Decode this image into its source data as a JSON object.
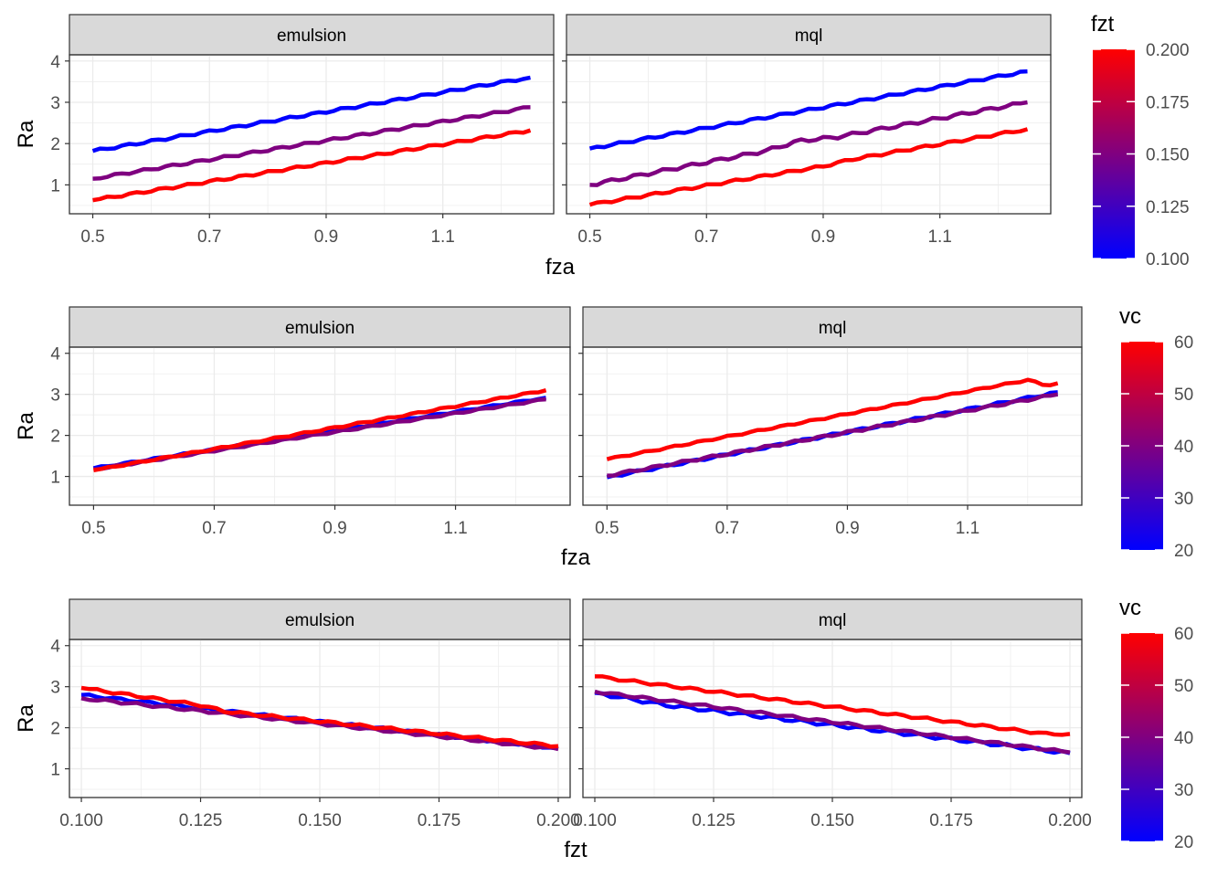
{
  "chart_data": [
    {
      "type": "line",
      "xlabel": "fza",
      "ylabel": "Ra",
      "xlim": [
        0.46,
        1.29
      ],
      "ylim": [
        0.3,
        4.15
      ],
      "x_ticks": [
        "0.5",
        "0.7",
        "0.9",
        "1.1"
      ],
      "y_ticks": [
        "1",
        "2",
        "3",
        "4"
      ],
      "grid": true,
      "legend": {
        "title": "fzt",
        "labels": [
          "0.200",
          "0.175",
          "0.150",
          "0.125",
          "0.100"
        ],
        "range": [
          0.1,
          0.2
        ],
        "low_color": "#0000ff",
        "high_color": "#ff0000",
        "placement": "right"
      },
      "facets": [
        {
          "label": "emulsion",
          "series": [
            {
              "color_value": 0.1,
              "x": [
                0.5,
                1.25
              ],
              "y": [
                1.82,
                3.6
              ],
              "jitter": 0.03
            },
            {
              "color_value": 0.15,
              "x": [
                0.5,
                1.25
              ],
              "y": [
                1.15,
                2.88
              ],
              "jitter": 0.03
            },
            {
              "color_value": 0.2,
              "x": [
                0.5,
                1.25
              ],
              "y": [
                0.63,
                2.32
              ],
              "jitter": 0.03
            }
          ]
        },
        {
          "label": "mql",
          "series": [
            {
              "color_value": 0.1,
              "x": [
                0.5,
                1.25
              ],
              "y": [
                1.88,
                3.75
              ],
              "jitter": 0.03
            },
            {
              "color_value": 0.15,
              "x": [
                0.5,
                0.8,
                0.86,
                0.92,
                1.25
              ],
              "y": [
                1.0,
                1.82,
                2.07,
                2.15,
                3.0
              ],
              "jitter": 0.04
            },
            {
              "color_value": 0.2,
              "x": [
                0.5,
                0.9,
                0.95,
                1.25
              ],
              "y": [
                0.52,
                1.45,
                1.62,
                2.35
              ],
              "jitter": 0.03
            }
          ]
        }
      ]
    },
    {
      "type": "line",
      "xlabel": "fza",
      "ylabel": "Ra",
      "xlim": [
        0.46,
        1.29
      ],
      "ylim": [
        0.3,
        4.15
      ],
      "x_ticks": [
        "0.5",
        "0.7",
        "0.9",
        "1.1"
      ],
      "y_ticks": [
        "1",
        "2",
        "3",
        "4"
      ],
      "grid": true,
      "legend": {
        "title": "vc",
        "labels": [
          "60",
          "50",
          "40",
          "30",
          "20"
        ],
        "range": [
          20,
          60
        ],
        "low_color": "#0000ff",
        "high_color": "#ff0000",
        "placement": "right"
      },
      "facets": [
        {
          "label": "emulsion",
          "series": [
            {
              "color_value": 20,
              "x": [
                0.5,
                1.25
              ],
              "y": [
                1.2,
                2.92
              ],
              "jitter": 0.02
            },
            {
              "color_value": 40,
              "x": [
                0.5,
                1.25
              ],
              "y": [
                1.17,
                2.88
              ],
              "jitter": 0.02
            },
            {
              "color_value": 60,
              "x": [
                0.5,
                1.25
              ],
              "y": [
                1.15,
                3.1
              ],
              "jitter": 0.02
            }
          ]
        },
        {
          "label": "mql",
          "series": [
            {
              "color_value": 20,
              "x": [
                0.5,
                1.25
              ],
              "y": [
                0.98,
                3.05
              ],
              "jitter": 0.03
            },
            {
              "color_value": 40,
              "x": [
                0.5,
                1.25
              ],
              "y": [
                1.02,
                3.0
              ],
              "jitter": 0.03
            },
            {
              "color_value": 60,
              "x": [
                0.5,
                1.2,
                1.23,
                1.25
              ],
              "y": [
                1.42,
                3.35,
                3.22,
                3.27
              ],
              "jitter": 0.02
            }
          ]
        }
      ]
    },
    {
      "type": "line",
      "xlabel": "fzt",
      "ylabel": "Ra",
      "xlim": [
        0.0975,
        0.2025
      ],
      "ylim": [
        0.3,
        4.15
      ],
      "x_ticks": [
        "0.100",
        "0.125",
        "0.150",
        "0.175",
        "0.200"
      ],
      "y_ticks": [
        "1",
        "2",
        "3",
        "4"
      ],
      "grid": true,
      "legend": {
        "title": "vc",
        "labels": [
          "60",
          "50",
          "40",
          "30",
          "20"
        ],
        "range": [
          20,
          60
        ],
        "low_color": "#0000ff",
        "high_color": "#ff0000",
        "placement": "right"
      },
      "facets": [
        {
          "label": "emulsion",
          "series": [
            {
              "color_value": 20,
              "x": [
                0.1,
                0.2
              ],
              "y": [
                2.8,
                1.5
              ],
              "jitter": 0.03
            },
            {
              "color_value": 40,
              "x": [
                0.1,
                0.2
              ],
              "y": [
                2.72,
                1.48
              ],
              "jitter": 0.03
            },
            {
              "color_value": 60,
              "x": [
                0.1,
                0.125,
                0.13,
                0.2
              ],
              "y": [
                2.97,
                2.55,
                2.4,
                1.55
              ],
              "jitter": 0.03
            }
          ]
        },
        {
          "label": "mql",
          "series": [
            {
              "color_value": 20,
              "x": [
                0.1,
                0.115,
                0.2
              ],
              "y": [
                2.85,
                2.55,
                1.38
              ],
              "jitter": 0.04
            },
            {
              "color_value": 40,
              "x": [
                0.1,
                0.2
              ],
              "y": [
                2.88,
                1.4
              ],
              "jitter": 0.03
            },
            {
              "color_value": 60,
              "x": [
                0.1,
                0.195,
                0.2
              ],
              "y": [
                3.25,
                1.85,
                1.85
              ],
              "jitter": 0.03
            }
          ]
        }
      ]
    }
  ]
}
